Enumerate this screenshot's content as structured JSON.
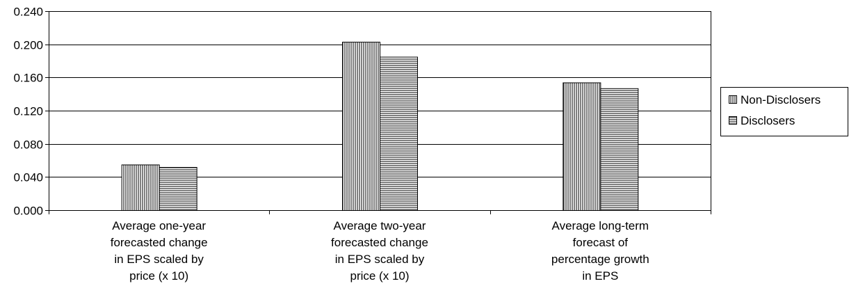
{
  "chart_data": {
    "type": "bar",
    "categories": [
      [
        "Average one-year",
        "forecasted change",
        "in EPS scaled by",
        "price (x 10)"
      ],
      [
        "Average two-year",
        "forecasted change",
        "in EPS scaled by",
        "price (x 10)"
      ],
      [
        "Average long-term",
        "forecast of",
        "percentage growth",
        "in EPS"
      ]
    ],
    "series": [
      {
        "name": "Non-Disclosers",
        "values": [
          0.055,
          0.203,
          0.154
        ],
        "pattern": "vertical"
      },
      {
        "name": "Disclosers",
        "values": [
          0.052,
          0.185,
          0.147
        ],
        "pattern": "horizontal"
      }
    ],
    "yticks": [
      "0.000",
      "0.040",
      "0.080",
      "0.120",
      "0.160",
      "0.200",
      "0.240"
    ],
    "ylim": [
      0,
      0.24
    ],
    "grid": true,
    "legend": "right",
    "colors": {
      "bar_fill": "#ffffff",
      "bar_stroke": "#000000",
      "grid": "#000000"
    }
  }
}
